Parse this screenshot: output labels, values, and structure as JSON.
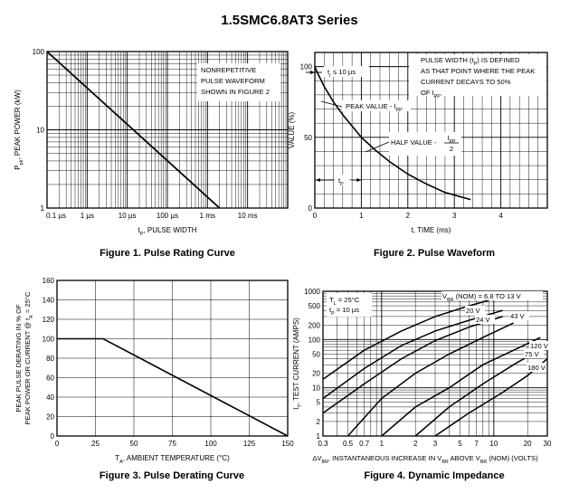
{
  "page_title": "1.5SMC6.8AT3 Series",
  "chart_data": [
    {
      "type": "line",
      "caption": "Figure 1. Pulse Rating Curve",
      "x_scale": "log",
      "y_scale": "log",
      "xlim": [
        "0.1 µs",
        "100 ms"
      ],
      "ylim": [
        1,
        100
      ],
      "x_tick_labels": [
        "0.1 µs",
        "1 µs",
        "10 µs",
        "100 µs",
        "1 ms",
        "10 ms"
      ],
      "y_tick_labels": [
        "100",
        "10",
        "1"
      ],
      "xlabel_main": "t",
      "xlabel_sub": "P",
      "xlabel_rest": ", PULSE WIDTH",
      "ylabel_main": "P",
      "ylabel_sub": "pk",
      "ylabel_rest": ", PEAK POWER (kW)",
      "note_lines": [
        "NONREPETITIVE",
        "PULSE WAVEFORM",
        "SHOWN IN FIGURE 2"
      ],
      "series": [
        {
          "x_us": [
            0.1,
            2000
          ],
          "y_kW": [
            100,
            1
          ]
        }
      ],
      "grid": true
    },
    {
      "type": "line",
      "caption": "Figure 2. Pulse Waveform",
      "xlim": [
        0,
        5
      ],
      "ylim": [
        0,
        110
      ],
      "x_tick_labels": [
        "0",
        "1",
        "2",
        "3",
        "4"
      ],
      "y_tick_labels": [
        "100",
        "50",
        "0"
      ],
      "xlabel": "t, TIME (ms)",
      "ylabel": "VALUE (%)",
      "tr_label": "t",
      "tr_sub": "r",
      "tr_rest": " ≤ 10 µs",
      "tp_label": "t",
      "tp_sub": "P",
      "peak_label": "PEAK VALUE - I",
      "peak_sub": "PP",
      "half_label": "HALF VALUE - ",
      "half_num": "I",
      "half_num_sub": "PP",
      "half_den": "2",
      "def_lines": [
        "PULSE WIDTH (t",
        "P",
        ") IS DEFINED",
        "AS THAT POINT WHERE THE PEAK",
        "CURRENT DECAYS TO 50%",
        "OF I",
        "PP",
        "."
      ],
      "series": [
        {
          "x": [
            0,
            0.05,
            0.2,
            0.4,
            0.6,
            0.8,
            1.0,
            1.3,
            1.6,
            2.0,
            2.4,
            2.8,
            3.35
          ],
          "y": [
            100,
            96,
            86,
            75,
            66,
            58,
            50,
            41,
            33,
            24,
            17,
            11,
            6
          ]
        }
      ],
      "grid": true
    },
    {
      "type": "line",
      "caption": "Figure 3. Pulse Derating Curve",
      "xlim": [
        0,
        150
      ],
      "ylim": [
        0,
        160
      ],
      "x_tick_labels": [
        "0",
        "25",
        "50",
        "75",
        "100",
        "125",
        "150"
      ],
      "y_tick_labels": [
        "160",
        "140",
        "120",
        "100",
        "80",
        "60",
        "40",
        "20",
        "0"
      ],
      "xlabel_main": "T",
      "xlabel_sub": "A",
      "xlabel_rest": ", AMBIENT TEMPERATURE (°C)",
      "ylabel_lines": [
        "PEAK PULSE DERATING IN % OF",
        "PEAK POWER OR CURRENT @ t",
        "A",
        " = 25°C"
      ],
      "series": [
        {
          "x": [
            0,
            30,
            150
          ],
          "y": [
            100,
            100,
            0
          ]
        }
      ],
      "grid": true
    },
    {
      "type": "line",
      "caption": "Figure 4. Dynamic Impedance",
      "x_scale": "log",
      "y_scale": "log",
      "xlim": [
        0.3,
        30
      ],
      "ylim": [
        1,
        1000
      ],
      "x_tick_labels": [
        "0.3",
        "0.5",
        "0.7",
        "1",
        "2",
        "3",
        "5",
        "7",
        "10",
        "20",
        "30"
      ],
      "y_tick_labels": [
        "1000",
        "500",
        "200",
        "100",
        "50",
        "20",
        "10",
        "5",
        "2",
        "1"
      ],
      "xlabel_pre": "ΔV",
      "xlabel_pre_sub": "BR",
      "xlabel_mid": ", INSTANTANEOUS INCREASE IN V",
      "xlabel_mid_sub": "BR",
      "xlabel_end": " ABOVE V",
      "xlabel_end_sub": "BR",
      "xlabel_tail": " (NOM) (VOLTS)",
      "ylabel_main": "I",
      "ylabel_sub": "T",
      "ylabel_rest": ", TEST CURRENT (AMPS)",
      "cond_lines": [
        [
          "T",
          "L",
          " = 25°C"
        ],
        [
          "t",
          "P",
          " = 10 µs"
        ]
      ],
      "series": [
        {
          "name": "V<sub>BR</sub> (NOM) = 6.8 TO 13 V",
          "x": [
            0.3,
            0.7,
            1.5,
            3,
            6,
            9
          ],
          "y": [
            15,
            60,
            150,
            300,
            500,
            650
          ]
        },
        {
          "name": "20 V",
          "x": [
            0.3,
            0.7,
            1.5,
            3,
            6,
            12
          ],
          "y": [
            6,
            25,
            75,
            150,
            250,
            400
          ]
        },
        {
          "name": "24 V",
          "x": [
            0.3,
            0.7,
            1.5,
            3,
            6,
            12
          ],
          "y": [
            3,
            12,
            40,
            95,
            180,
            300
          ]
        },
        {
          "name": "43 V",
          "x": [
            0.5,
            1,
            2,
            4,
            8,
            15
          ],
          "y": [
            1,
            6,
            20,
            50,
            110,
            220
          ]
        },
        {
          "name": "75 V",
          "x": [
            1,
            2,
            4,
            8,
            15,
            26
          ],
          "y": [
            1,
            4,
            10,
            30,
            60,
            110
          ]
        },
        {
          "name": "120 V",
          "x": [
            2,
            4,
            8,
            15,
            25
          ],
          "y": [
            1,
            4,
            12,
            30,
            60
          ]
        },
        {
          "name": "180 V",
          "x": [
            3,
            6,
            12,
            20,
            30
          ],
          "y": [
            1,
            3,
            8,
            18,
            40
          ]
        }
      ],
      "series_labels": [
        {
          "main": "V",
          "sub": "BR",
          "rest": " (NOM) = 6.8 TO 13 V"
        },
        {
          "main": "20 V"
        },
        {
          "main": "24 V"
        },
        {
          "main": "43 V"
        },
        {
          "main": "75 V"
        },
        {
          "main": "120 V"
        },
        {
          "main": "180 V"
        }
      ],
      "grid": true
    }
  ]
}
